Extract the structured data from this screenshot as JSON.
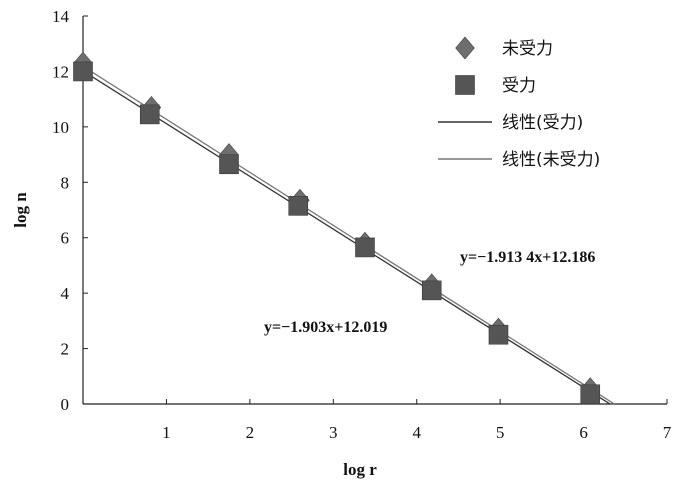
{
  "chart_data": {
    "type": "scatter",
    "xlabel": "log r",
    "ylabel": "log n",
    "xlim": [
      0,
      7
    ],
    "ylim": [
      0,
      14
    ],
    "xticks": [
      1,
      2,
      3,
      4,
      5,
      6,
      7
    ],
    "yticks": [
      0,
      2,
      4,
      6,
      8,
      10,
      12,
      14
    ],
    "grid": false,
    "legend_position": "top-right",
    "series": [
      {
        "name": "未受力",
        "marker": "diamond",
        "color": "#6e6e6e",
        "x": [
          0,
          0.82,
          1.75,
          2.6,
          3.38,
          4.18,
          4.98,
          6.08
        ],
        "y": [
          12.3,
          10.7,
          9.0,
          7.35,
          5.8,
          4.3,
          2.7,
          0.55
        ]
      },
      {
        "name": "受力",
        "marker": "square",
        "color": "#555555",
        "x": [
          0,
          0.8,
          1.75,
          2.58,
          3.38,
          4.18,
          4.98,
          6.08
        ],
        "y": [
          12.0,
          10.45,
          8.65,
          7.15,
          5.65,
          4.1,
          2.5,
          0.35
        ]
      }
    ],
    "trendlines": [
      {
        "name": "线性(受力)",
        "slope": -1.903,
        "intercept": 12.019,
        "x_range": [
          0,
          6.32
        ],
        "color": "#333333",
        "equation": "y=−1.903x+12.019"
      },
      {
        "name": "线性(未受力)",
        "slope": -1.9134,
        "intercept": 12.186,
        "x_range": [
          0,
          6.37
        ],
        "color": "#777777",
        "equation": "y=−1.913 4x+12.186"
      }
    ]
  }
}
